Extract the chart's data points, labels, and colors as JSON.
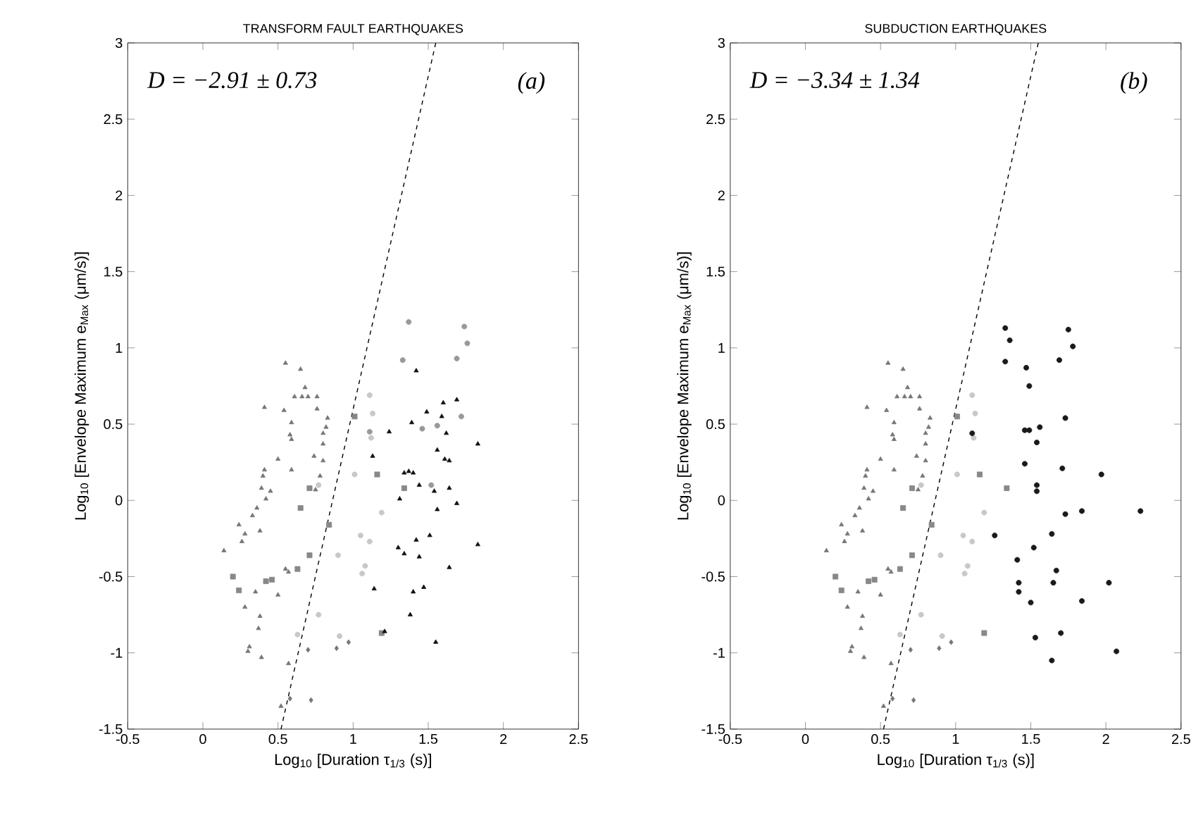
{
  "chart_data": [
    {
      "type": "scatter",
      "title": "TRANSFORM  FAULT  EARTHQUAKES",
      "xlabel": "Log$_{10}$ [Duration  τ$_{1/3}$ (s)]",
      "ylabel": "Log$_{10}$ [Envelope Maximum  e$_{Max}$ (μm/s)]",
      "annotations": [
        "D = −2.91 ± 0.73",
        "(a)"
      ],
      "xlim": [
        -0.5,
        2.5
      ],
      "ylim": [
        -1.5,
        3
      ],
      "xticks": [
        -0.5,
        0,
        0.5,
        1,
        1.5,
        2,
        2.5
      ],
      "yticks": [
        -1.5,
        -1,
        -0.5,
        0,
        0.5,
        1,
        1.5,
        2,
        2.5,
        3
      ],
      "grid": false,
      "series": [
        {
          "marker": "triangle",
          "color": "#777777",
          "x": [
            0.55,
            0.65,
            0.68,
            0.61,
            0.66,
            0.7,
            0.76,
            0.41,
            0.54,
            0.76,
            0.83,
            0.59,
            0.58,
            0.59,
            0.8,
            0.82,
            0.8,
            0.74,
            0.5,
            0.59,
            0.8,
            0.41,
            0.4,
            0.39,
            0.45,
            0.42,
            0.36,
            0.33,
            0.24,
            0.28,
            0.26,
            0.38,
            0.14,
            0.55,
            0.57,
            0.35,
            0.5,
            0.28,
            0.38,
            0.37,
            0.31,
            0.3,
            0.39,
            0.57,
            0.52,
            0.78,
            0.75
          ],
          "values": [
            0.9,
            0.86,
            0.74,
            0.68,
            0.68,
            0.68,
            0.68,
            0.61,
            0.59,
            0.6,
            0.54,
            0.51,
            0.43,
            0.4,
            0.44,
            0.48,
            0.37,
            0.29,
            0.27,
            0.2,
            0.26,
            0.2,
            0.16,
            0.08,
            0.06,
            0.01,
            -0.05,
            -0.1,
            -0.16,
            -0.22,
            -0.27,
            -0.2,
            -0.33,
            -0.45,
            -0.47,
            -0.6,
            -0.62,
            -0.7,
            -0.76,
            -0.84,
            -0.96,
            -0.99,
            -1.03,
            -1.07,
            -1.35,
            0.16,
            0.07
          ]
        },
        {
          "marker": "square",
          "color": "#888888",
          "x": [
            1.01,
            0.65,
            0.84,
            0.71,
            0.63,
            0.2,
            0.24,
            0.42,
            0.46,
            0.71,
            1.16,
            1.34,
            1.19
          ],
          "values": [
            0.55,
            -0.05,
            -0.16,
            -0.36,
            -0.45,
            -0.5,
            -0.59,
            -0.53,
            -0.52,
            0.08,
            0.17,
            0.08,
            -0.87
          ]
        },
        {
          "marker": "circle",
          "color": "#c8c8c8",
          "x": [
            1.01,
            0.77,
            0.9,
            0.77,
            0.63,
            0.91,
            1.11,
            1.13,
            1.12,
            1.19,
            1.05,
            1.11,
            1.08,
            1.06
          ],
          "values": [
            0.17,
            0.1,
            -0.36,
            -0.75,
            -0.88,
            -0.89,
            0.69,
            0.57,
            0.41,
            -0.08,
            -0.23,
            -0.27,
            -0.43,
            -0.48
          ]
        },
        {
          "marker": "diamond",
          "color": "#777777",
          "x": [
            0.7,
            0.89,
            0.97,
            0.58,
            0.72
          ],
          "values": [
            -0.98,
            -0.97,
            -0.93,
            -1.3,
            -1.31
          ]
        },
        {
          "marker": "circle",
          "color": "#999999",
          "x": [
            1.33,
            1.69,
            1.72,
            1.46,
            1.56,
            1.11,
            1.52,
            1.37,
            1.74,
            1.76
          ],
          "values": [
            0.92,
            0.93,
            0.55,
            0.47,
            0.49,
            0.45,
            0.1,
            1.17,
            1.14,
            1.03
          ]
        },
        {
          "marker": "triangle",
          "color": "#111111",
          "x": [
            1.42,
            1.69,
            1.6,
            1.49,
            1.59,
            1.39,
            1.24,
            1.62,
            1.83,
            1.56,
            1.61,
            1.64,
            1.13,
            1.34,
            1.37,
            1.4,
            1.44,
            1.54,
            1.64,
            1.31,
            1.69,
            1.56,
            1.51,
            1.42,
            1.3,
            1.34,
            1.44,
            1.83,
            1.64,
            1.14,
            1.4,
            1.47,
            1.38,
            1.21,
            1.55
          ],
          "values": [
            0.85,
            0.66,
            0.64,
            0.58,
            0.55,
            0.51,
            0.45,
            0.44,
            0.37,
            0.33,
            0.27,
            0.26,
            0.29,
            0.18,
            0.19,
            0.18,
            0.1,
            0.06,
            0.08,
            0.01,
            -0.02,
            -0.06,
            -0.23,
            -0.26,
            -0.31,
            -0.35,
            -0.37,
            -0.29,
            -0.44,
            -0.58,
            -0.6,
            -0.57,
            -0.75,
            -0.86,
            -0.93
          ]
        },
        {
          "type": "line",
          "marker": "none",
          "line_style": "dashed",
          "color": "#000000",
          "x": [
            0.52,
            1.55
          ],
          "values": [
            -1.5,
            3
          ]
        }
      ]
    },
    {
      "type": "scatter",
      "title": "SUBDUCTION  EARTHQUAKES",
      "xlabel": "Log$_{10}$ [Duration  τ$_{1/3}$ (s)]",
      "ylabel": "Log$_{10}$ [Envelope Maximum  e$_{Max}$ (μm/s)]",
      "annotations": [
        "D = −3.34 ± 1.34",
        "(b)"
      ],
      "xlim": [
        -0.5,
        2.5
      ],
      "ylim": [
        -1.5,
        3
      ],
      "xticks": [
        -0.5,
        0,
        0.5,
        1,
        1.5,
        2,
        2.5
      ],
      "yticks": [
        -1.5,
        -1,
        -0.5,
        0,
        0.5,
        1,
        1.5,
        2,
        2.5,
        3
      ],
      "grid": false,
      "series": [
        {
          "marker": "triangle",
          "color": "#777777",
          "x": [
            0.55,
            0.65,
            0.68,
            0.61,
            0.66,
            0.7,
            0.76,
            0.41,
            0.54,
            0.76,
            0.83,
            0.59,
            0.58,
            0.59,
            0.8,
            0.82,
            0.8,
            0.74,
            0.5,
            0.59,
            0.8,
            0.41,
            0.4,
            0.39,
            0.45,
            0.42,
            0.36,
            0.33,
            0.24,
            0.28,
            0.26,
            0.38,
            0.14,
            0.55,
            0.57,
            0.35,
            0.5,
            0.28,
            0.38,
            0.37,
            0.31,
            0.3,
            0.39,
            0.57,
            0.52,
            0.78,
            0.75
          ],
          "values": [
            0.9,
            0.86,
            0.74,
            0.68,
            0.68,
            0.68,
            0.68,
            0.61,
            0.59,
            0.6,
            0.54,
            0.51,
            0.43,
            0.4,
            0.44,
            0.48,
            0.37,
            0.29,
            0.27,
            0.2,
            0.26,
            0.2,
            0.16,
            0.08,
            0.06,
            0.01,
            -0.05,
            -0.1,
            -0.16,
            -0.22,
            -0.27,
            -0.2,
            -0.33,
            -0.45,
            -0.47,
            -0.6,
            -0.62,
            -0.7,
            -0.76,
            -0.84,
            -0.96,
            -0.99,
            -1.03,
            -1.07,
            -1.35,
            0.16,
            0.07
          ]
        },
        {
          "marker": "square",
          "color": "#888888",
          "x": [
            1.01,
            0.65,
            0.84,
            0.71,
            0.63,
            0.2,
            0.24,
            0.42,
            0.46,
            0.71,
            1.16,
            1.34,
            1.19
          ],
          "values": [
            0.55,
            -0.05,
            -0.16,
            -0.36,
            -0.45,
            -0.5,
            -0.59,
            -0.53,
            -0.52,
            0.08,
            0.17,
            0.08,
            -0.87
          ]
        },
        {
          "marker": "circle",
          "color": "#c8c8c8",
          "x": [
            1.01,
            0.77,
            0.9,
            0.77,
            0.63,
            0.91,
            1.11,
            1.13,
            1.12,
            1.19,
            1.05,
            1.11,
            1.08,
            1.06
          ],
          "values": [
            0.17,
            0.1,
            -0.36,
            -0.75,
            -0.88,
            -0.89,
            0.69,
            0.57,
            0.41,
            -0.08,
            -0.23,
            -0.27,
            -0.43,
            -0.48
          ]
        },
        {
          "marker": "diamond",
          "color": "#777777",
          "x": [
            0.7,
            0.89,
            0.97,
            0.58,
            0.72
          ],
          "values": [
            -0.98,
            -0.97,
            -0.93,
            -1.3,
            -1.31
          ]
        },
        {
          "marker": "circle",
          "color": "#1a1a1a",
          "x": [
            1.33,
            1.47,
            1.49,
            1.69,
            1.73,
            1.11,
            1.46,
            1.49,
            1.56,
            1.54,
            1.46,
            1.71,
            1.97,
            1.54,
            1.54,
            1.73,
            1.84,
            2.23,
            1.26,
            1.64,
            1.52,
            1.41,
            1.67,
            1.65,
            1.42,
            1.42,
            1.5,
            1.84,
            2.02,
            1.53,
            1.7,
            1.64,
            2.07,
            1.33,
            1.36,
            1.75,
            1.78
          ],
          "values": [
            0.91,
            0.87,
            0.75,
            0.92,
            0.54,
            0.44,
            0.46,
            0.46,
            0.48,
            0.38,
            0.24,
            0.21,
            0.17,
            0.1,
            0.06,
            -0.09,
            -0.07,
            -0.07,
            -0.23,
            -0.22,
            -0.31,
            -0.39,
            -0.46,
            -0.54,
            -0.54,
            -0.6,
            -0.67,
            -0.66,
            -0.54,
            -0.9,
            -0.87,
            -1.05,
            -0.99,
            1.13,
            1.05,
            1.12,
            1.01
          ]
        },
        {
          "type": "line",
          "marker": "none",
          "line_style": "dashed",
          "color": "#000000",
          "x": [
            0.52,
            1.55
          ],
          "values": [
            -1.5,
            3
          ]
        }
      ]
    }
  ]
}
